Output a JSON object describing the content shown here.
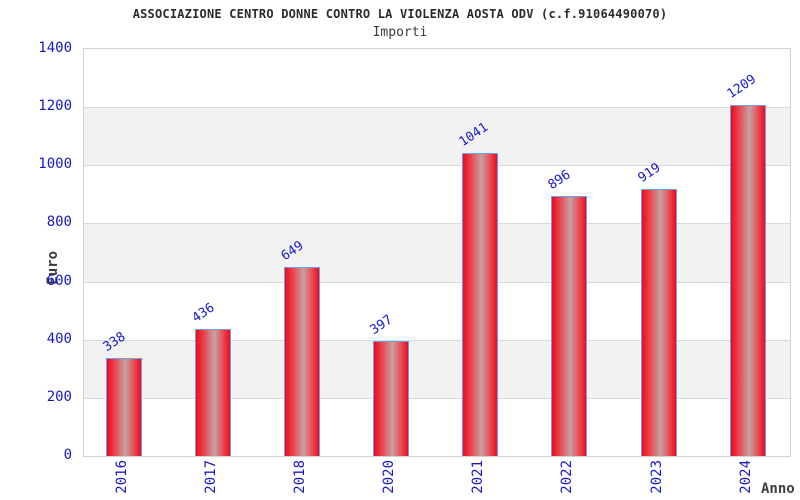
{
  "chart_data": {
    "type": "bar",
    "title": "ASSOCIAZIONE CENTRO DONNE CONTRO LA VIOLENZA AOSTA ODV (c.f.91064490070)",
    "subtitle": "Importi",
    "xlabel": "Anno",
    "ylabel": "Euro",
    "categories": [
      "2016",
      "2017",
      "2018",
      "2020",
      "2021",
      "2022",
      "2023",
      "2024"
    ],
    "values": [
      338,
      436,
      649,
      397,
      1041,
      896,
      919,
      1209
    ],
    "ylim": [
      0,
      1400
    ],
    "yticks": [
      0,
      200,
      400,
      600,
      800,
      1000,
      1200,
      1400
    ],
    "grid": "horizontal-bands",
    "legend": "none",
    "colors": {
      "bar_fill_edge": "#ee0b1d",
      "bar_fill_inner": "#e6525a",
      "bar_fill_mid": "#c6a1a3",
      "bar_border": "#6ca0e8",
      "tick_label": "#1717cd",
      "value_label": "#1717cd",
      "band_alt": "#f2f2f2",
      "grid_line": "#d9d9d9",
      "axis_text": "#3d3d3d",
      "plot_border": "#d2d2d2"
    }
  }
}
